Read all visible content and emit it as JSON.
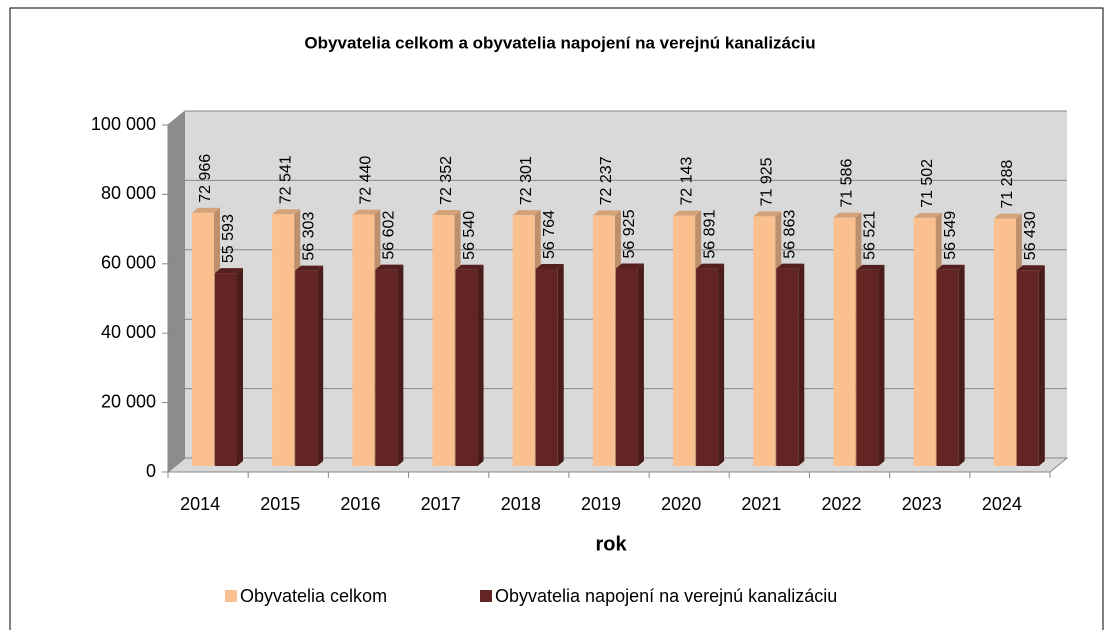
{
  "chart_data": {
    "type": "bar3d",
    "title": "Obyvatelia celkom a obyvatelia napojení na verejnú kanalizáciu",
    "x_label": "rok",
    "categories": [
      "2014",
      "2015",
      "2016",
      "2017",
      "2018",
      "2019",
      "2020",
      "2021",
      "2022",
      "2023",
      "2024"
    ],
    "series": [
      {
        "name": "Obyvatelia celkom",
        "color": "#fac090",
        "values": [
          72966,
          72541,
          72440,
          72352,
          72301,
          72237,
          72143,
          71925,
          71586,
          71502,
          71288
        ],
        "value_labels": [
          "72 966",
          "72 541",
          "72 440",
          "72 352",
          "72 301",
          "72 237",
          "72 143",
          "71 925",
          "71 586",
          "71 502",
          "71 288"
        ]
      },
      {
        "name": "Obyvatelia napojení na verejnú kanalizáciu",
        "color": "#632523",
        "values": [
          55593,
          56303,
          56602,
          56540,
          56764,
          56925,
          56891,
          56863,
          56521,
          56549,
          56430
        ],
        "value_labels": [
          "55 593",
          "56 303",
          "56 602",
          "56 540",
          "56 764",
          "56 925",
          "56 891",
          "56 863",
          "56 521",
          "56 549",
          "56 430"
        ]
      }
    ],
    "ylim": [
      0,
      100000
    ],
    "yticks": [
      0,
      {
        "value": 20000,
        "label": "20 000"
      },
      {
        "value": 40000,
        "label": "40 000"
      },
      {
        "value": 60000,
        "label": "60 000"
      },
      {
        "value": 80000,
        "label": "80 000"
      },
      {
        "value": 100000,
        "label": "100 000"
      }
    ],
    "grid": true,
    "legend": "bottom"
  }
}
